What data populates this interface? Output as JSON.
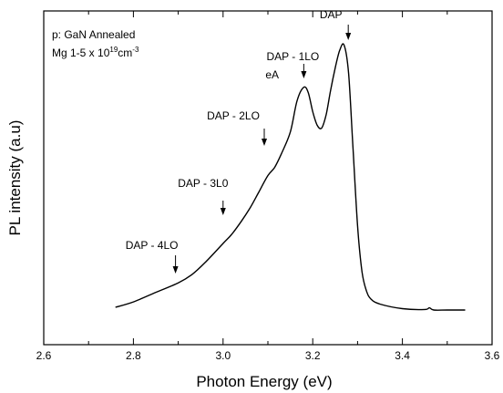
{
  "chart_data": {
    "type": "line",
    "xlabel": "Photon Energy (eV)",
    "ylabel": "PL intensity (a.u)",
    "xlim": [
      2.6,
      3.6
    ],
    "ylim": [
      0,
      1
    ],
    "x_ticks": [
      2.6,
      2.8,
      3.0,
      3.2,
      3.4,
      3.6
    ],
    "x_tick_labels": [
      "2.6",
      "2.8",
      "3.0",
      "3.2",
      "3.4",
      "3.6"
    ],
    "y_tick_labels_shown": false,
    "grid": false,
    "legend": "none",
    "sample_lines": [
      "p: GaN Annealed",
      "Mg 1-5 x 10",
      "19",
      "cm",
      "-3"
    ],
    "series": [
      {
        "x": [
          2.76,
          2.8,
          2.85,
          2.9,
          2.93,
          2.96,
          3.0,
          3.02,
          3.04,
          3.06,
          3.08,
          3.1,
          3.115,
          3.13,
          3.15,
          3.165,
          3.18,
          3.19,
          3.2,
          3.21,
          3.22,
          3.23,
          3.24,
          3.25,
          3.26,
          3.27,
          3.28,
          3.29,
          3.3,
          3.31,
          3.32,
          3.33,
          3.35,
          3.4,
          3.45,
          3.46,
          3.47,
          3.5,
          3.54
        ],
        "y": [
          0.02,
          0.04,
          0.075,
          0.11,
          0.14,
          0.185,
          0.255,
          0.29,
          0.335,
          0.385,
          0.445,
          0.505,
          0.535,
          0.585,
          0.665,
          0.78,
          0.83,
          0.81,
          0.74,
          0.69,
          0.68,
          0.73,
          0.82,
          0.9,
          0.965,
          0.985,
          0.88,
          0.6,
          0.32,
          0.15,
          0.08,
          0.05,
          0.032,
          0.015,
          0.012,
          0.018,
          0.01,
          0.01,
          0.01
        ]
      }
    ],
    "annotations": [
      {
        "text": "DAP",
        "x": 3.265,
        "arrow_y": 0.985
      },
      {
        "text": "DAP - 1LO",
        "x": 3.18,
        "arrow_y": 0.82
      },
      {
        "text": "eA",
        "x": 3.18
      },
      {
        "text": "DAP - 2LO",
        "x": 3.1,
        "arrow_y": 0.53
      },
      {
        "text": "DAP - 3L0",
        "x": 3.0,
        "arrow_y": 0.31
      },
      {
        "text": "DAP - 4LO",
        "x": 2.9,
        "arrow_y": 0.11
      }
    ]
  }
}
